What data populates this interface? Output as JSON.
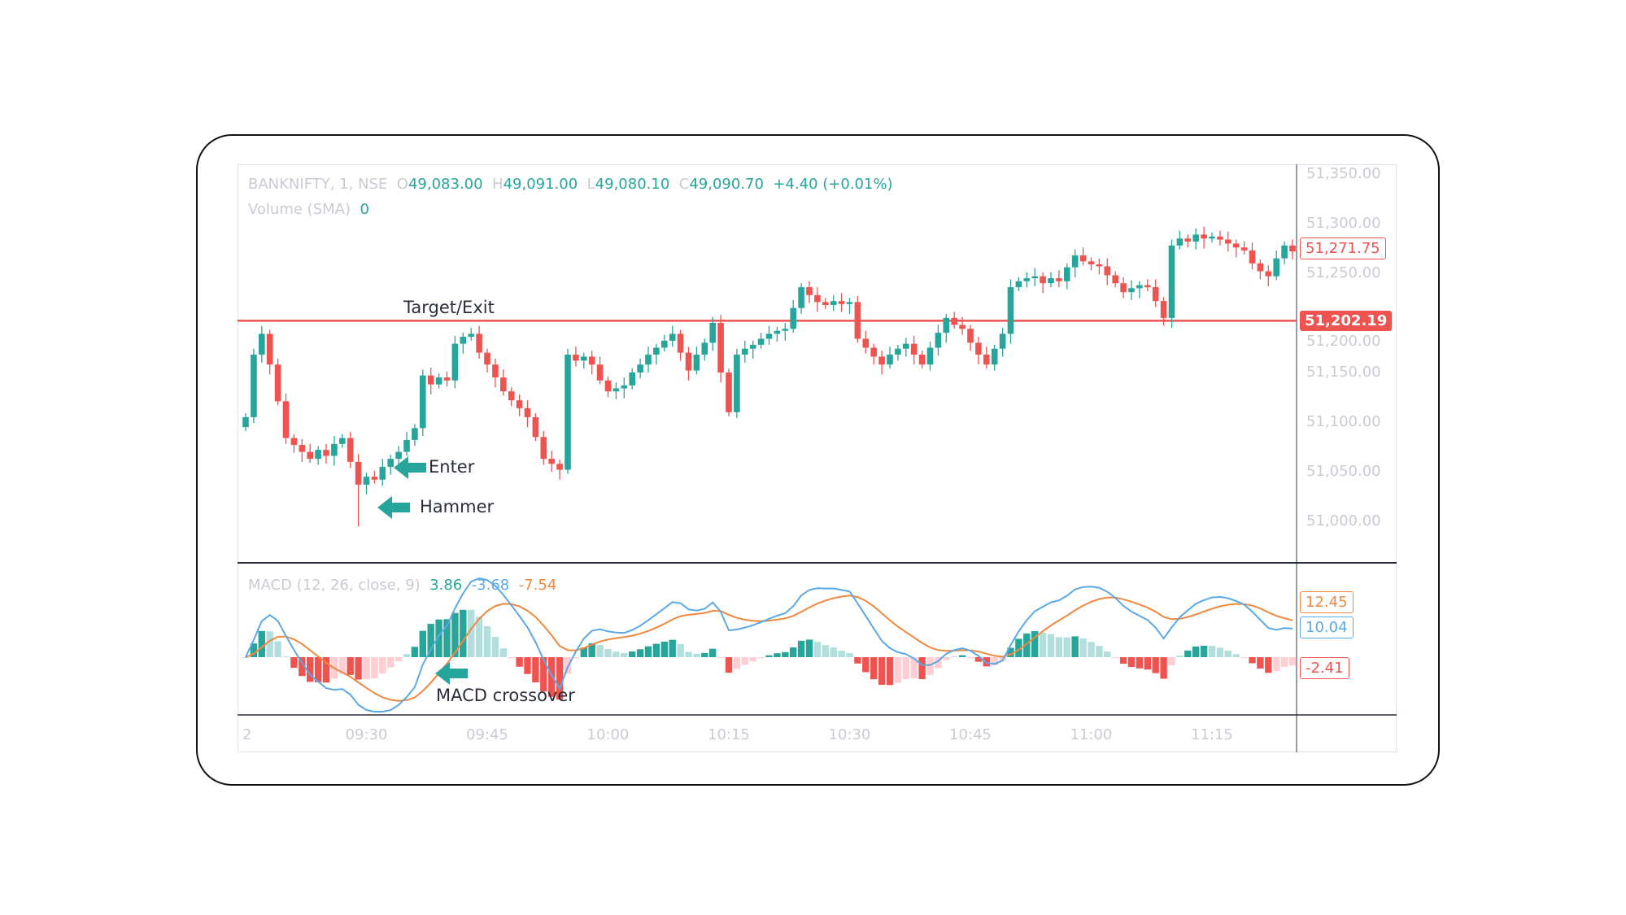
{
  "header": {
    "symbol": "BANKNIFTY, 1, NSE",
    "o_label": "O",
    "open": "49,083.00",
    "h_label": "H",
    "high": "49,091.00",
    "l_label": "L",
    "low": "49,080.10",
    "c_label": "C",
    "close": "49,090.70",
    "change": "+4.40 (+0.01%)",
    "volume_label": "Volume (SMA)",
    "volume_value": "0"
  },
  "macd_header": {
    "label": "MACD (12, 26, close, 9)",
    "hist": "3.86",
    "macd": "-3.68",
    "signal": "-7.54"
  },
  "annotations": {
    "target": "Target/Exit",
    "enter": "Enter",
    "hammer": "Hammer",
    "crossover": "MACD crossover"
  },
  "price_labels": {
    "last": "51,271.75",
    "target": "51,202.19"
  },
  "macd_labels": {
    "signal": "12.45",
    "macd": "10.04",
    "hist": "-2.41"
  },
  "colors": {
    "up": "#26a69a",
    "down": "#ef5350",
    "up_light": "#b2dfdb",
    "down_light": "#ffcdd2",
    "macd": "#5aa9e6",
    "signal": "#f0883e",
    "target_line": "#ef5350"
  },
  "chart_data": {
    "type": "candlestick",
    "interval": "1 minute",
    "yticks": [
      "51,350.00",
      "51,300.00",
      "51,250.00",
      "51,200.00",
      "51,150.00",
      "51,100.00",
      "51,050.00",
      "51,000.00"
    ],
    "ytick_values": [
      51350,
      51300,
      51250,
      51200,
      51150,
      51100,
      51050,
      51000
    ],
    "ylim": [
      50980,
      51350
    ],
    "xticks": [
      "2",
      "09:30",
      "09:45",
      "10:00",
      "10:15",
      "10:30",
      "10:45",
      "11:00",
      "11:15"
    ],
    "target_level": 51202.19,
    "first_open": 51095,
    "close": [
      51105,
      51168,
      51189,
      51158,
      51121,
      51084,
      51077,
      51070,
      51063,
      51072,
      51066,
      51078,
      51084,
      51060,
      51037,
      51045,
      51042,
      51055,
      51063,
      51070,
      51082,
      51094,
      51147,
      51138,
      51145,
      51142,
      51179,
      51186,
      51189,
      51170,
      51158,
      51145,
      51131,
      51122,
      51114,
      51105,
      51085,
      51063,
      51058,
      51052,
      51168,
      51162,
      51166,
      51158,
      51142,
      51131,
      51134,
      51137,
      51150,
      51158,
      51168,
      51175,
      51182,
      51189,
      51170,
      51152,
      51168,
      51180,
      51200,
      51150,
      51110,
      51168,
      51174,
      51178,
      51184,
      51189,
      51192,
      51194,
      51215,
      51236,
      51228,
      51221,
      51218,
      51222,
      51219,
      51221,
      51184,
      51175,
      51166,
      51158,
      51168,
      51174,
      51179,
      51168,
      51158,
      51175,
      51190,
      51205,
      51198,
      51194,
      51180,
      51168,
      51158,
      51174,
      51189,
      51236,
      51242,
      51245,
      51247,
      51240,
      51245,
      51242,
      51256,
      51268,
      51262,
      51259,
      51257,
      51248,
      51240,
      51231,
      51235,
      51238,
      51236,
      51222,
      51205,
      51278,
      51285,
      51282,
      51289,
      51285,
      51287,
      51284,
      51280,
      51276,
      51273,
      51260,
      51252,
      51247,
      51265,
      51278,
      51272
    ],
    "hammer_low": 50995,
    "hammer_index": 14,
    "indicator": {
      "name": "MACD",
      "fast": 12,
      "slow": 26,
      "source": "close",
      "signal": 9
    }
  }
}
